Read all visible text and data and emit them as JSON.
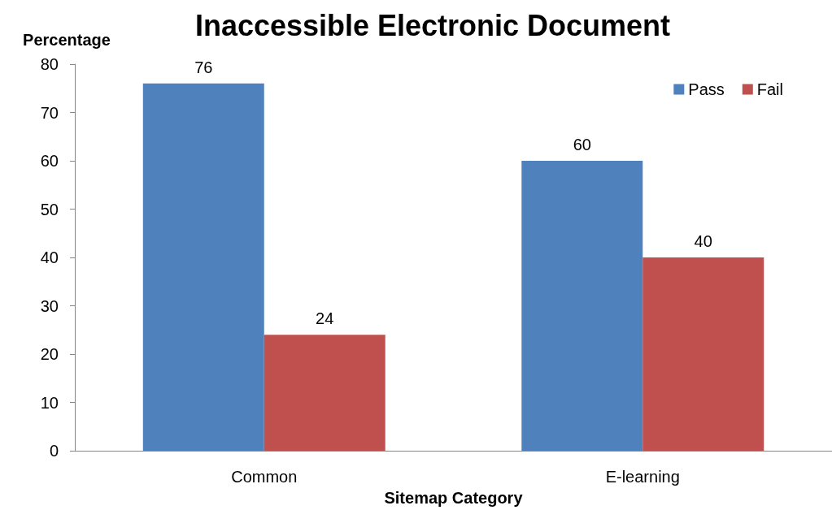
{
  "chart_data": {
    "type": "bar",
    "title": "Inaccessible Electronic Document",
    "xlabel": "Sitemap Category",
    "ylabel": "Percentage",
    "categories": [
      "Common",
      "E-learning"
    ],
    "series": [
      {
        "name": "Pass",
        "color": "#4f81bd",
        "values": [
          76,
          60
        ]
      },
      {
        "name": "Fail",
        "color": "#c0504d",
        "values": [
          24,
          40
        ]
      }
    ],
    "ylim": [
      0,
      80
    ],
    "yticks": [
      0,
      10,
      20,
      30,
      40,
      50,
      60,
      70,
      80
    ],
    "grid": false,
    "legend": "top right",
    "data_labels": true
  }
}
